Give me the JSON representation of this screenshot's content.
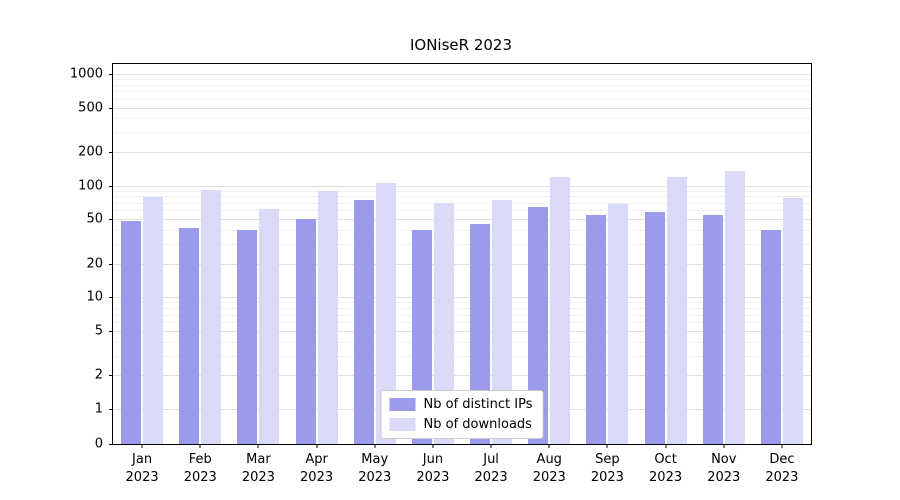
{
  "chart_data": {
    "type": "bar",
    "title": "IONiseR 2023",
    "categories": [
      "Jan 2023",
      "Feb 2023",
      "Mar 2023",
      "Apr 2023",
      "May 2023",
      "Jun 2023",
      "Jul 2023",
      "Aug 2023",
      "Sep 2023",
      "Oct 2023",
      "Nov 2023",
      "Dec 2023"
    ],
    "series": [
      {
        "name": "Nb of distinct IPs",
        "color": "#9b9bee",
        "values": [
          48,
          42,
          40,
          50,
          75,
          40,
          45,
          65,
          55,
          58,
          55,
          40
        ]
      },
      {
        "name": "Nb of downloads",
        "color": "#d9d9f8",
        "values": [
          80,
          92,
          62,
          90,
          105,
          70,
          75,
          120,
          68,
          120,
          135,
          78
        ]
      }
    ],
    "yscale": "symlog",
    "y_ticks": [
      0,
      1,
      2,
      5,
      10,
      20,
      50,
      100,
      200,
      500,
      1000
    ],
    "ylim": [
      0,
      1228
    ],
    "xlabel": "",
    "ylabel": "",
    "grid": true,
    "legend_position": "lower center"
  }
}
